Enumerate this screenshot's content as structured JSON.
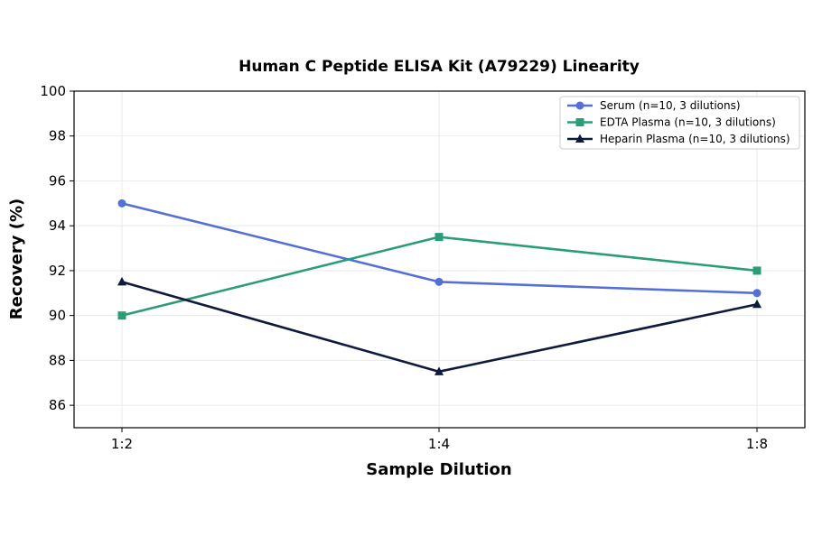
{
  "chart_data": {
    "type": "line",
    "title": "Human C Peptide ELISA Kit (A79229) Linearity",
    "xlabel": "Sample Dilution",
    "ylabel": "Recovery (%)",
    "categories": [
      "1:2",
      "1:4",
      "1:8"
    ],
    "ylim": [
      85,
      100
    ],
    "yticks": [
      86,
      88,
      90,
      92,
      94,
      96,
      98,
      100
    ],
    "grid": true,
    "legend_position": "top-right",
    "series": [
      {
        "name": "Serum (n=10, 3 dilutions)",
        "values": [
          95.0,
          91.5,
          91.0
        ],
        "color": "#5470d6",
        "marker": "circle"
      },
      {
        "name": "EDTA Plasma (n=10, 3 dilutions)",
        "values": [
          90.0,
          93.5,
          92.0
        ],
        "color": "#2a9d78",
        "marker": "square"
      },
      {
        "name": "Heparin Plasma (n=10, 3 dilutions)",
        "values": [
          91.5,
          87.5,
          90.5
        ],
        "color": "#0f1a3e",
        "marker": "triangle"
      }
    ]
  }
}
